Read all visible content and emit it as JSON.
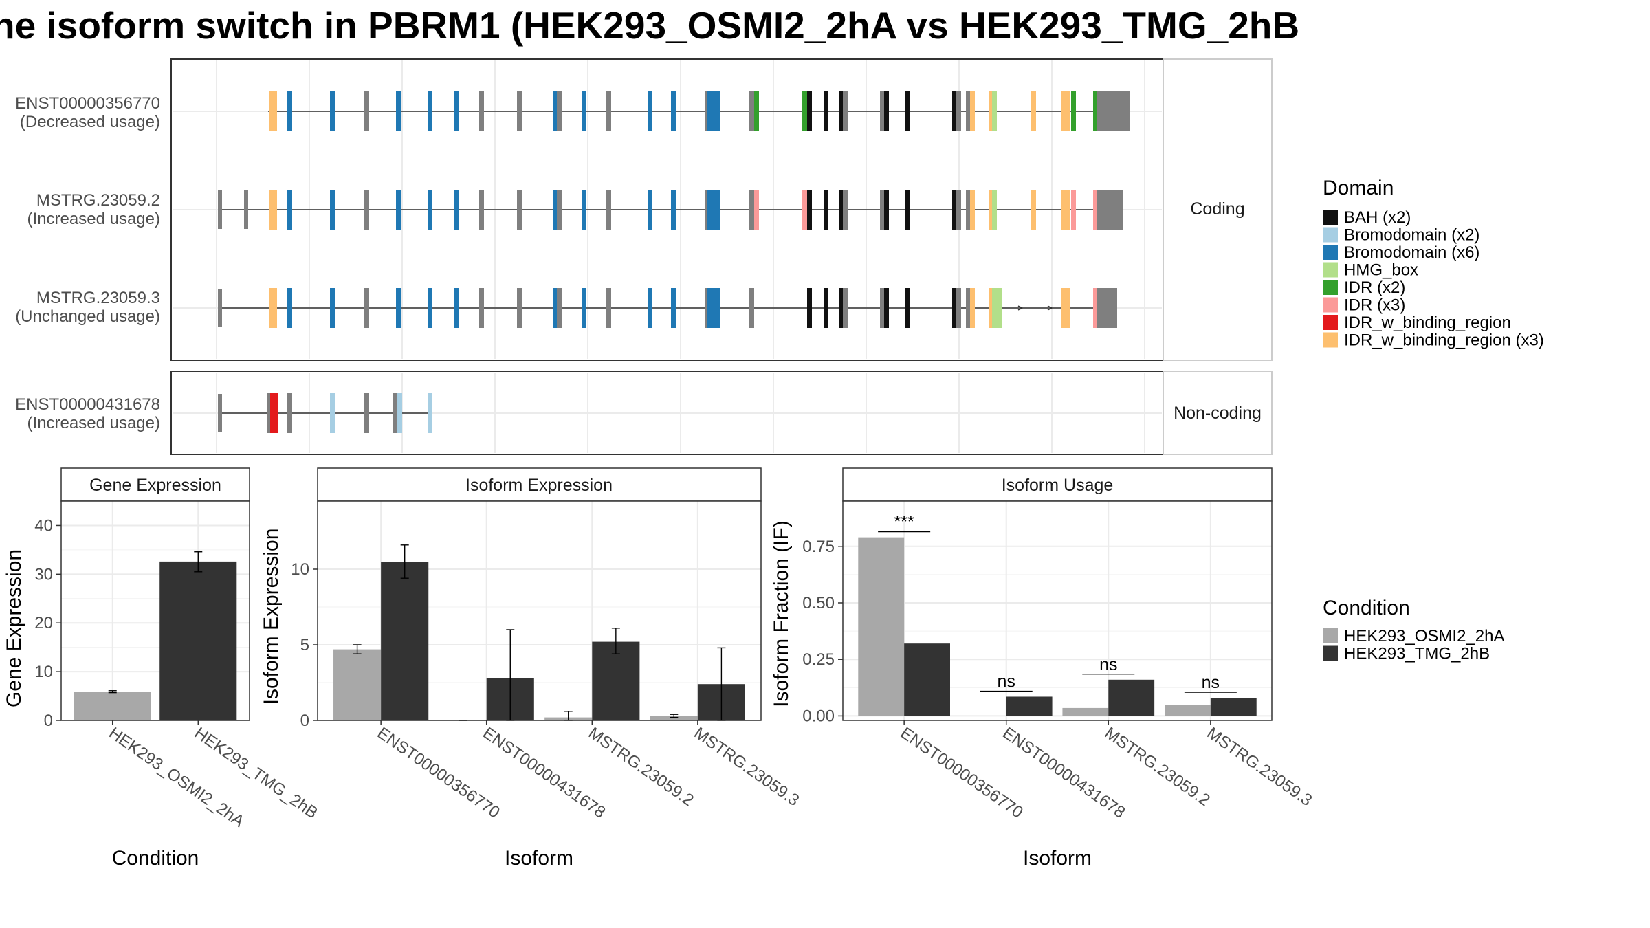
{
  "title": "he isoform switch in PBRM1 (HEK293_OSMI2_2hA vs HEK293_TMG_2hB",
  "structure": {
    "coding_label": "Coding",
    "noncoding_label": "Non-coding",
    "isoforms": [
      {
        "id": "ENST00000356770",
        "usage": "(Decreased usage)",
        "group": "coding"
      },
      {
        "id": "MSTRG.23059.2",
        "usage": "(Increased usage)",
        "group": "coding"
      },
      {
        "id": "MSTRG.23059.3",
        "usage": "(Unchanged usage)",
        "group": "coding"
      },
      {
        "id": "ENST00000431678",
        "usage": "(Increased usage)",
        "group": "noncoding"
      }
    ]
  },
  "domain_legend": {
    "title": "Domain",
    "items": [
      {
        "label": "BAH (x2)",
        "color": "#111111"
      },
      {
        "label": "Bromodomain (x2)",
        "color": "#a6cee3"
      },
      {
        "label": "Bromodomain (x6)",
        "color": "#1f78b4"
      },
      {
        "label": "HMG_box",
        "color": "#b2df8a"
      },
      {
        "label": "IDR (x2)",
        "color": "#33a02c"
      },
      {
        "label": "IDR (x3)",
        "color": "#fb9a99"
      },
      {
        "label": "IDR_w_binding_region",
        "color": "#e31a1c"
      },
      {
        "label": "IDR_w_binding_region (x3)",
        "color": "#fdbf6f"
      }
    ]
  },
  "condition_legend": {
    "title": "Condition",
    "items": [
      {
        "label": "HEK293_OSMI2_2hA",
        "color": "#a8a8a8"
      },
      {
        "label": "HEK293_TMG_2hB",
        "color": "#333333"
      }
    ]
  },
  "chart_data": [
    {
      "type": "bar",
      "title": "Gene Expression",
      "xlabel": "Condition",
      "ylabel": "Gene Expression",
      "categories": [
        "HEK293_OSMI2_2hA",
        "HEK293_TMG_2hB"
      ],
      "values": [
        5.9,
        32.6
      ],
      "error": [
        [
          5.7,
          6.1
        ],
        [
          30.5,
          34.6
        ]
      ],
      "ylim": [
        0,
        45
      ],
      "yticks": [
        0,
        10,
        20,
        30,
        40
      ]
    },
    {
      "type": "bar",
      "title": "Isoform Expression",
      "xlabel": "Isoform",
      "ylabel": "Isoform Expression",
      "categories": [
        "ENST00000356770",
        "ENST00000431678",
        "MSTRG.23059.2",
        "MSTRG.23059.3"
      ],
      "series": [
        {
          "name": "HEK293_OSMI2_2hA",
          "values": [
            4.7,
            0.0,
            0.2,
            0.3
          ],
          "error": [
            [
              4.4,
              5.0
            ],
            [
              0.0,
              0.0
            ],
            [
              0.0,
              0.6
            ],
            [
              0.2,
              0.4
            ]
          ]
        },
        {
          "name": "HEK293_TMG_2hB",
          "values": [
            10.5,
            2.8,
            5.2,
            2.4
          ],
          "error": [
            [
              9.4,
              11.6
            ],
            [
              0.0,
              6.0
            ],
            [
              4.4,
              6.1
            ],
            [
              0.0,
              4.8
            ]
          ]
        }
      ],
      "ylim": [
        0,
        14.5
      ],
      "yticks": [
        0,
        5,
        10
      ]
    },
    {
      "type": "bar",
      "title": "Isoform Usage",
      "xlabel": "Isoform",
      "ylabel": "Isoform Fraction (IF)",
      "categories": [
        "ENST00000356770",
        "ENST00000431678",
        "MSTRG.23059.2",
        "MSTRG.23059.3"
      ],
      "series": [
        {
          "name": "HEK293_OSMI2_2hA",
          "values": [
            0.79,
            0.0,
            0.035,
            0.047
          ]
        },
        {
          "name": "HEK293_TMG_2hB",
          "values": [
            0.32,
            0.085,
            0.16,
            0.08
          ]
        }
      ],
      "significance": [
        "***",
        "ns",
        "ns",
        "ns"
      ],
      "ylim": [
        -0.02,
        0.95
      ],
      "yticks": [
        0.0,
        0.25,
        0.5,
        0.75
      ],
      "ytick_labels": [
        "0.00",
        "0.25",
        "0.50",
        "0.75"
      ]
    }
  ]
}
